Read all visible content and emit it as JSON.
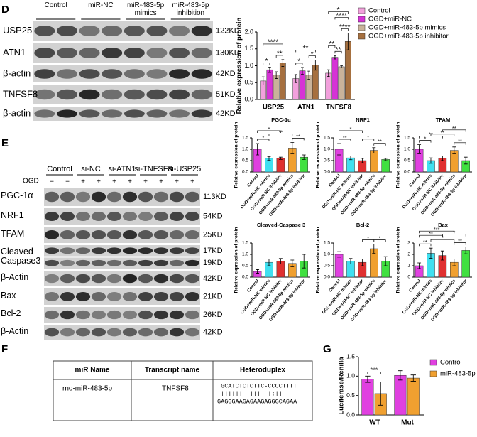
{
  "panel_labels": [
    "D",
    "E",
    "F",
    "G"
  ],
  "blot_d": {
    "columns": [
      "Control",
      "miR-NC",
      "miR-483-5p mimics",
      "miR-483-5p inhibition"
    ],
    "rows": [
      {
        "label": "USP25",
        "size": "122KD"
      },
      {
        "label": "ATN1",
        "size": "130KD"
      },
      {
        "label": "β-actin",
        "size": "42KD"
      },
      {
        "label": "TNFSF8",
        "size": "51KD"
      },
      {
        "label": "β-actin",
        "size": "42KD"
      }
    ]
  },
  "blot_e": {
    "columns": [
      "Control",
      "si-NC",
      "si-ATN1",
      "si-TNFSF8",
      "si-USP25"
    ],
    "treatment": "OGD",
    "signs": [
      "−",
      "−",
      "+",
      "+",
      "+",
      "+",
      "+",
      "+",
      "+",
      "+"
    ],
    "rows": [
      {
        "label": "PGC-1α",
        "sizes": [
          "113KD"
        ]
      },
      {
        "label": "NRF1",
        "sizes": [
          "54KD"
        ]
      },
      {
        "label": "TFAM",
        "sizes": [
          "25KD"
        ]
      },
      {
        "label": "Cleaved-Caspase3",
        "sizes": [
          "17KD",
          "19KD"
        ]
      },
      {
        "label": "β-Actin",
        "sizes": [
          "42KD"
        ]
      },
      {
        "label": "Bax",
        "sizes": [
          "21KD"
        ]
      },
      {
        "label": "Bcl-2",
        "sizes": [
          "26KD"
        ]
      },
      {
        "label": "β-Actin",
        "sizes": [
          "42KD"
        ]
      }
    ]
  },
  "table": {
    "headers": [
      "miR Name",
      "Transcript name",
      "Heteroduplex"
    ],
    "rows": [
      [
        "rno-miR-483-5p",
        "TNFSF8",
        [
          "TGCATCTCTCTTC-CCCCTTTT",
          "|||||||  |||  |:||",
          "GAGGGAAGAGAAGAGGGCAGAA"
        ]
      ]
    ]
  },
  "chart_data": [
    {
      "type": "bar",
      "y_label": "Relative expression of protein",
      "categories": [
        "USP25",
        "ATN1",
        "TNFSF8"
      ],
      "series": [
        {
          "name": "Control",
          "color": "#f2a0dc",
          "values": [
            0.55,
            0.62,
            0.78
          ],
          "errors": [
            0.12,
            0.12,
            0.1
          ]
        },
        {
          "name": "OGD+miR-NC",
          "color": "#d633d6",
          "values": [
            0.88,
            0.85,
            1.25
          ],
          "errors": [
            0.08,
            0.1,
            0.05
          ]
        },
        {
          "name": "OGD+miR-483-5p mimics",
          "color": "#c9b39a",
          "values": [
            0.72,
            0.72,
            0.97
          ],
          "errors": [
            0.1,
            0.12,
            0.03
          ]
        },
        {
          "name": "OGD+miR-483-5p inhibitor",
          "color": "#a6703f",
          "values": [
            1.08,
            1.02,
            1.72
          ],
          "errors": [
            0.1,
            0.15,
            0.25
          ]
        }
      ],
      "ylim": [
        0,
        2
      ],
      "yticks": [
        {
          "value": 0,
          "label": "0.0"
        },
        0.5,
        {
          "value": 1,
          "label": "1.0"
        },
        1.5,
        {
          "value": 2,
          "label": "2.0"
        }
      ],
      "annotations": [
        "****",
        "*",
        "**",
        "**",
        "*",
        "*",
        "*",
        "****",
        "**",
        "**",
        "****"
      ]
    },
    {
      "type": "bar",
      "title": "PGC-1α",
      "y_label": "Relative expression of protein",
      "categories": [
        "Control",
        "OGD+miR-NC mimics",
        "OGD+miR-NC inhibitor",
        "OGD+miR-483-5p mimics",
        "OGD+miR-483-5p inhibitor"
      ],
      "colors": [
        "#e040e0",
        "#40e0f0",
        "#e03030",
        "#f0a030",
        "#40e040"
      ],
      "values": [
        1.0,
        0.6,
        0.6,
        1.05,
        0.65
      ],
      "errors": [
        0.25,
        0.08,
        0.05,
        0.25,
        0.1
      ],
      "ylim": [
        0,
        1.5
      ],
      "yticks": [
        {
          "value": 0,
          "label": "0.0"
        },
        0.5,
        {
          "value": 1,
          "label": "1.0"
        },
        1.5
      ],
      "annotations": [
        "*",
        "**",
        "**",
        "*"
      ]
    },
    {
      "type": "bar",
      "title": "NRF1",
      "y_label": "Relative expression of protein",
      "categories": [
        "Control",
        "OGD+miR-NC mimics",
        "OGD+miR-NC inhibitor",
        "OGD+miR-483-5p mimics",
        "OGD+miR-483-5p inhibitor"
      ],
      "colors": [
        "#e040e0",
        "#40e0f0",
        "#e03030",
        "#f0a030",
        "#40e040"
      ],
      "values": [
        1.0,
        0.62,
        0.5,
        0.95,
        0.55
      ],
      "errors": [
        0.25,
        0.08,
        0.1,
        0.12,
        0.05
      ],
      "ylim": [
        0,
        1.5
      ],
      "yticks": [
        {
          "value": 0,
          "label": "0.0"
        },
        0.5,
        {
          "value": 1,
          "label": "1.0"
        },
        1.5
      ],
      "annotations": [
        "*",
        "*",
        "**",
        "**"
      ]
    },
    {
      "type": "bar",
      "title": "TFAM",
      "y_label": "Relative expression of protein",
      "categories": [
        "Control",
        "OGD+miR-NC mimics",
        "OGD+miR-NC inhibitor",
        "OGD+miR-483-5p mimics",
        "OGD+miR-483-5p inhibitor"
      ],
      "colors": [
        "#e040e0",
        "#40e0f0",
        "#e03030",
        "#f0a030",
        "#40e040"
      ],
      "values": [
        1.0,
        0.5,
        0.6,
        0.95,
        0.5
      ],
      "errors": [
        0.2,
        0.12,
        0.1,
        0.15,
        0.15
      ],
      "ylim": [
        0,
        1.5
      ],
      "yticks": [
        {
          "value": 0,
          "label": "0.0"
        },
        0.5,
        {
          "value": 1,
          "label": "1.0"
        },
        1.5
      ],
      "annotations": [
        "*",
        "**",
        "**",
        "**",
        "**"
      ]
    },
    {
      "type": "bar",
      "title": "Cleaved-Caspase 3",
      "y_label": "Relative expression of protein",
      "categories": [
        "Control",
        "OGD+miR-NC mimics",
        "OGD+miR-NC inhibitor",
        "OGD+miR-483-5p mimics",
        "OGD+miR-483-5p inhibitor"
      ],
      "colors": [
        "#e040e0",
        "#40e0f0",
        "#e03030",
        "#f0a030",
        "#40e040"
      ],
      "values": [
        0.25,
        0.65,
        0.7,
        0.6,
        0.7
      ],
      "errors": [
        0.08,
        0.15,
        0.12,
        0.15,
        0.3
      ],
      "ylim": [
        0,
        1.5
      ],
      "yticks": [
        {
          "value": 0,
          "label": "0.0"
        },
        0.5,
        {
          "value": 1,
          "label": "1.0"
        },
        1.5
      ]
    },
    {
      "type": "bar",
      "title": "Bcl-2",
      "y_label": "Relative expression of protein",
      "categories": [
        "Control",
        "OGD+miR-NC mimics",
        "OGD+miR-NC inhibitor",
        "OGD+miR-483-5p mimics",
        "OGD+miR-483-5p inhibitor"
      ],
      "colors": [
        "#e040e0",
        "#40e0f0",
        "#e03030",
        "#f0a030",
        "#40e040"
      ],
      "values": [
        1.0,
        0.7,
        0.65,
        1.25,
        0.7
      ],
      "errors": [
        0.12,
        0.12,
        0.15,
        0.2,
        0.2
      ],
      "ylim": [
        0,
        1.5
      ],
      "yticks": [
        {
          "value": 0,
          "label": "0.0"
        },
        0.5,
        {
          "value": 1,
          "label": "1.0"
        },
        1.5
      ],
      "annotations": [
        "*",
        "*"
      ]
    },
    {
      "type": "bar",
      "title": "Bax",
      "y_label": "Relative expression of protein",
      "categories": [
        "Control",
        "OGD+miR-NC mimics",
        "OGD+miR-NC inhibitor",
        "OGD+miR-483-5p mimics",
        "OGD+miR-483-5p inhibitor"
      ],
      "colors": [
        "#e040e0",
        "#40e0f0",
        "#e03030",
        "#f0a030",
        "#40e040"
      ],
      "values": [
        1.0,
        2.1,
        1.9,
        1.3,
        2.35
      ],
      "errors": [
        0.25,
        0.45,
        0.4,
        0.3,
        0.3
      ],
      "ylim": [
        0,
        3
      ],
      "yticks": [
        0,
        1,
        2,
        3
      ],
      "annotations": [
        "**",
        "**",
        "*",
        "*",
        "***",
        "**"
      ]
    },
    {
      "type": "bar",
      "y_label": "Luciferase/Renilla",
      "categories": [
        "WT",
        "Mut"
      ],
      "series": [
        {
          "name": "Control",
          "color": "#e040e0",
          "values": [
            0.92,
            1.02
          ],
          "errors": [
            0.08,
            0.12
          ]
        },
        {
          "name": "miR-483-5p",
          "color": "#f0a030",
          "values": [
            0.55,
            0.95
          ],
          "errors": [
            0.3,
            0.08
          ]
        }
      ],
      "ylim": [
        0,
        1.5
      ],
      "yticks": [
        {
          "value": 0,
          "label": "0.0"
        },
        0.5,
        {
          "value": 1,
          "label": "1.0"
        },
        1.5
      ],
      "annotations": [
        "***"
      ]
    }
  ]
}
